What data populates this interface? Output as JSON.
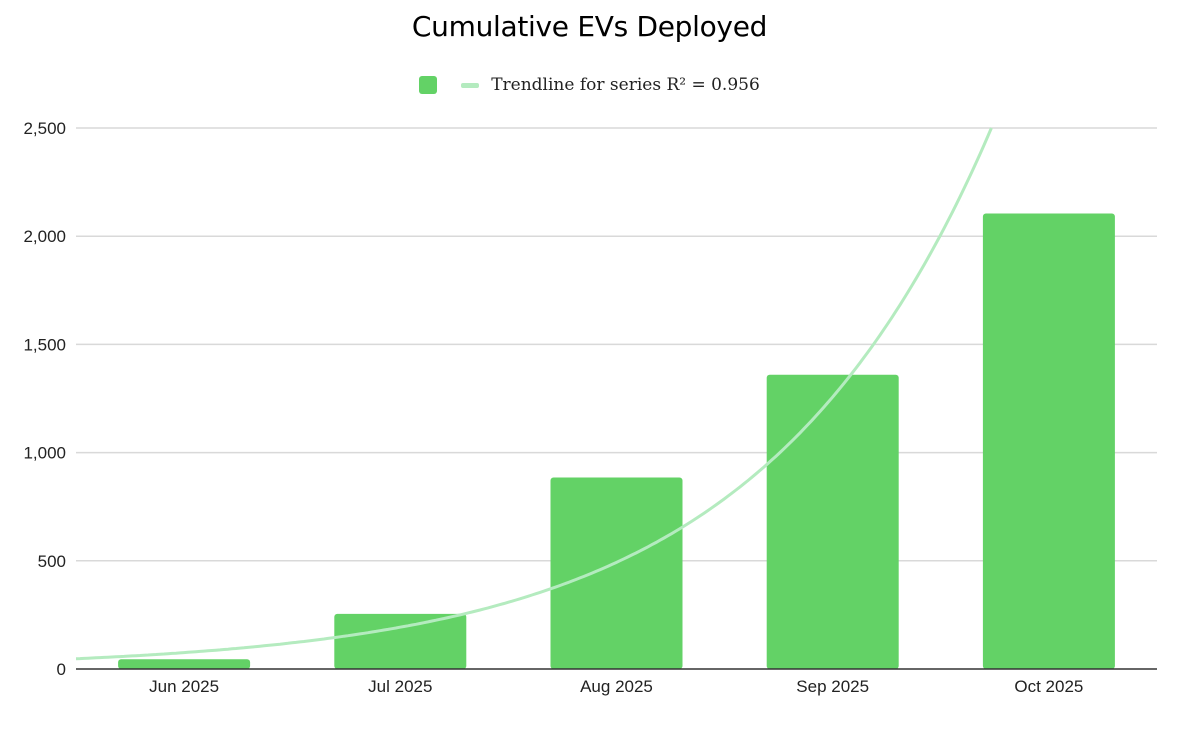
{
  "chart_data": {
    "type": "bar",
    "title": "Cumulative EVs Deployed",
    "categories": [
      "Jun 2025",
      "Jul 2025",
      "Aug 2025",
      "Sep 2025",
      "Oct 2025"
    ],
    "series": [
      {
        "values": [
          45,
          255,
          885,
          1360,
          2105
        ]
      }
    ],
    "trendline": {
      "label": "Trendline for series R² = 0.956",
      "type": "exponential",
      "r_squared": 0.956
    },
    "ylim": [
      0,
      2500
    ],
    "yticks": [
      0,
      500,
      1000,
      1500,
      2000,
      2500
    ],
    "ytick_labels": [
      "0",
      "500",
      "1,000",
      "1,500",
      "2,000",
      "2,500"
    ],
    "xlabel": "",
    "ylabel": "",
    "grid": true,
    "legend_position": "top",
    "colors": {
      "bar": "#63d266",
      "trendline": "#b4ebbf",
      "grid": "#d9d9d9",
      "axis": "#333333"
    }
  }
}
